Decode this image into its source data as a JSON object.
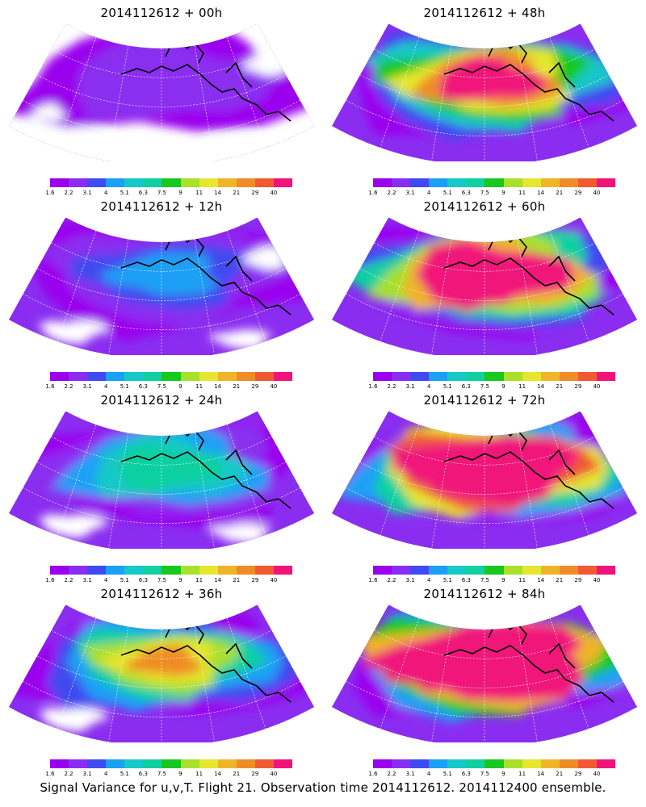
{
  "panels": [
    {
      "title": "2014112612 + 00h",
      "intensity": 0
    },
    {
      "title": "2014112612 + 48h",
      "intensity": 4
    },
    {
      "title": "2014112612 + 12h",
      "intensity": 1
    },
    {
      "title": "2014112612 + 60h",
      "intensity": 5
    },
    {
      "title": "2014112612 + 24h",
      "intensity": 2
    },
    {
      "title": "2014112612 + 72h",
      "intensity": 6
    },
    {
      "title": "2014112612 + 36h",
      "intensity": 3
    },
    {
      "title": "2014112612 + 84h",
      "intensity": 7
    }
  ],
  "colorbar": {
    "ticks": [
      "1.6",
      "2.2",
      "3.1",
      "4",
      "5.1",
      "6.3",
      "7.5",
      "9",
      "11",
      "14",
      "21",
      "29",
      "40"
    ],
    "colors": [
      "#9a00ee",
      "#8a2df0",
      "#3f4af0",
      "#1aa0f5",
      "#17c8c8",
      "#10d0a0",
      "#18c81e",
      "#a8e02a",
      "#e6e62e",
      "#f0b428",
      "#f08c28",
      "#f05a32",
      "#f0147a"
    ]
  },
  "caption": "Signal Variance for u,v,T. Flight 21. Observation time 2014112612. 2014112400 ensemble."
}
